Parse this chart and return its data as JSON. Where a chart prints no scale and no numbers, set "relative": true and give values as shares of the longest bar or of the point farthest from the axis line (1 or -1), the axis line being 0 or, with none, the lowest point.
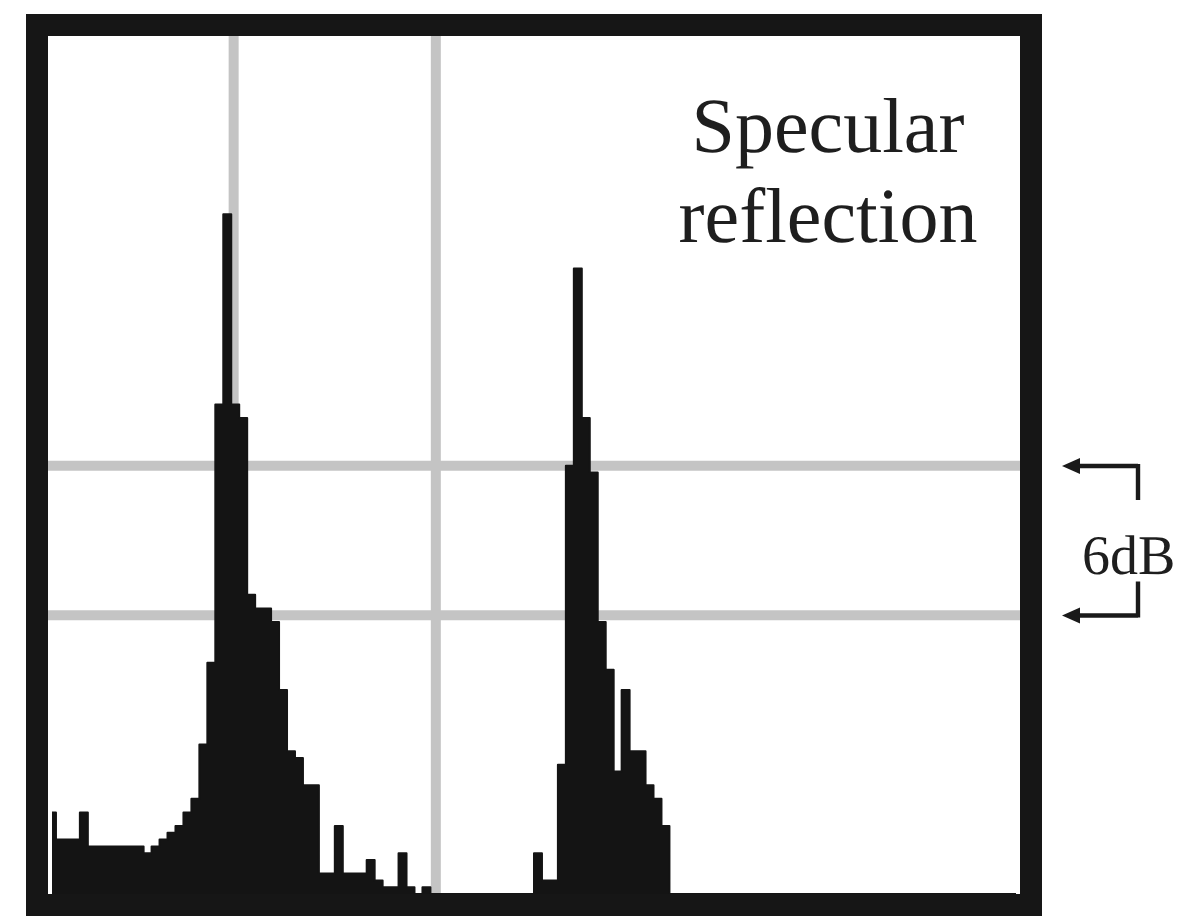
{
  "chart_data": {
    "type": "area",
    "relative": true,
    "categories": [
      null,
      null,
      null,
      null,
      null,
      null,
      null,
      null,
      null,
      null,
      null,
      null,
      null,
      null,
      null,
      null,
      null,
      null,
      null,
      null,
      null,
      null,
      null,
      null,
      null,
      null,
      null,
      null,
      null,
      null,
      null,
      null,
      null,
      null,
      null,
      null,
      null,
      null,
      null,
      null,
      null,
      null,
      null,
      null,
      null,
      null,
      null,
      null,
      null,
      null,
      null,
      null,
      null,
      null,
      null,
      null,
      null,
      null,
      null,
      null,
      null,
      null,
      null,
      null,
      null,
      null,
      null,
      null,
      null,
      null,
      null,
      null,
      null,
      null,
      null,
      null,
      null,
      null,
      null,
      null,
      null,
      null,
      null,
      null,
      null,
      null,
      null,
      null,
      null,
      null,
      null,
      null,
      null,
      null,
      null,
      null,
      null,
      null,
      null,
      null,
      null,
      null,
      null,
      null,
      null,
      null,
      null,
      null,
      null,
      null,
      null,
      null,
      null,
      null,
      null,
      null,
      null,
      null,
      null,
      null,
      null,
      null
    ],
    "values": [
      0.12,
      0.08,
      0.08,
      0.08,
      0.12,
      0.07,
      0.07,
      0.07,
      0.07,
      0.07,
      0.07,
      0.07,
      0.06,
      0.07,
      0.08,
      0.09,
      0.1,
      0.12,
      0.14,
      0.22,
      0.34,
      0.72,
      1,
      0.72,
      0.7,
      0.44,
      0.42,
      0.42,
      0.4,
      0.3,
      0.21,
      0.2,
      0.16,
      0.16,
      0.03,
      0.03,
      0.1,
      0.03,
      0.03,
      0.03,
      0.05,
      0.02,
      0.01,
      0.01,
      0.06,
      0.01,
      0,
      0.01,
      0,
      0,
      0,
      0,
      0,
      0,
      0,
      0,
      0,
      0,
      0,
      0,
      0,
      0.06,
      0.02,
      0.02,
      0.19,
      0.63,
      0.92,
      0.7,
      0.62,
      0.4,
      0.33,
      0.18,
      0.3,
      0.21,
      0.21,
      0.16,
      0.14,
      0.1,
      0,
      0,
      0,
      0,
      0,
      0,
      0,
      0,
      0,
      0,
      0,
      0,
      0,
      0,
      0,
      0,
      0,
      0,
      0,
      0,
      0,
      0,
      0,
      0,
      0,
      0,
      0,
      0,
      0,
      0,
      0,
      0,
      0,
      0,
      0,
      0,
      0,
      0,
      0,
      0,
      0,
      0,
      0,
      0
    ],
    "color": "#141414",
    "ref_lines": [
      {
        "axis": "y",
        "value": 0.63,
        "color": "#c4c4c4"
      },
      {
        "axis": "y",
        "value": 0.41,
        "color": "#c4c4c4"
      }
    ],
    "annotations": [
      "Specular reflection",
      "6dB"
    ]
  }
}
